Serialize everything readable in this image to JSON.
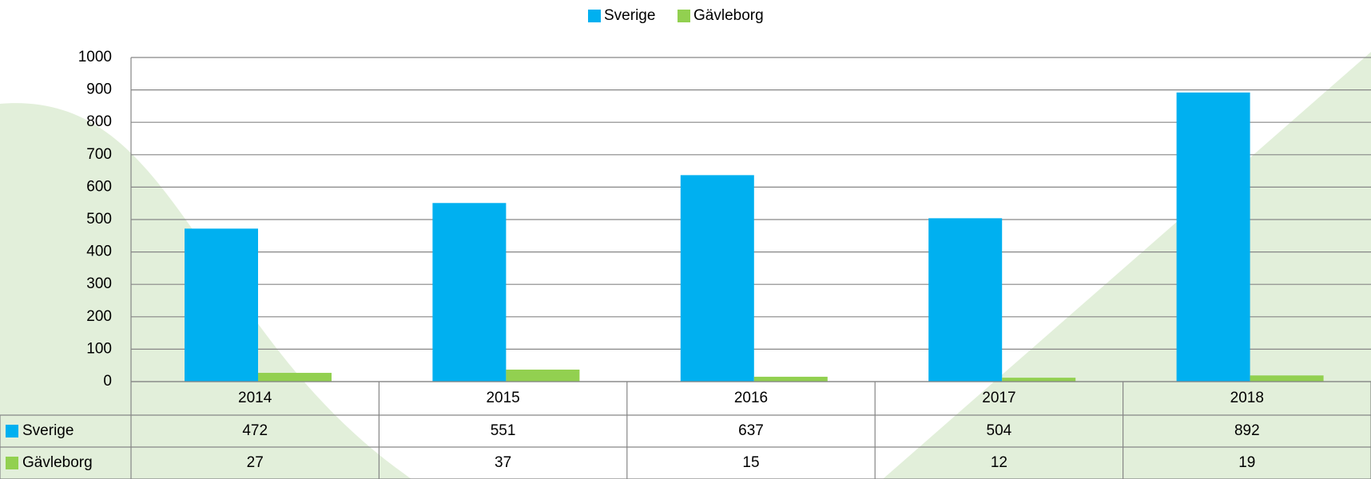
{
  "chart_data": {
    "type": "bar",
    "categories": [
      "2014",
      "2015",
      "2016",
      "2017",
      "2018"
    ],
    "series": [
      {
        "name": "Sverige",
        "color": "#00b0f0",
        "values": [
          472,
          551,
          637,
          504,
          892
        ]
      },
      {
        "name": "Gävleborg",
        "color": "#92d050",
        "values": [
          27,
          37,
          15,
          12,
          19
        ]
      }
    ],
    "ylim": [
      0,
      1000
    ],
    "yticks": [
      0,
      100,
      200,
      300,
      400,
      500,
      600,
      700,
      800,
      900,
      1000
    ],
    "grid": true,
    "legend": "top",
    "data_table": true
  }
}
